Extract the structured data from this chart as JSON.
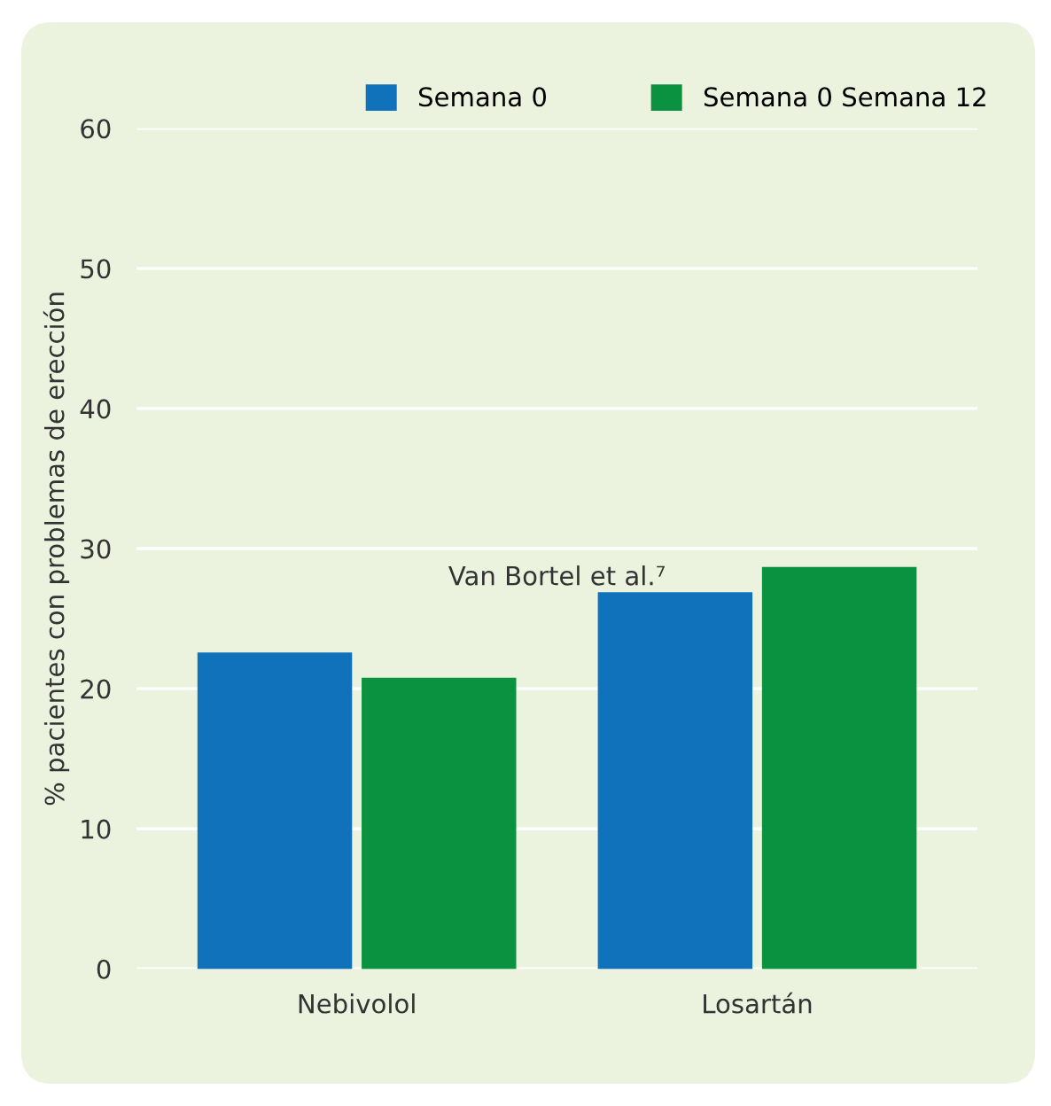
{
  "chart_data": {
    "type": "bar",
    "ylabel": "% pacientes con problemas de erección",
    "categories": [
      "Nebivolol",
      "Losartán"
    ],
    "series": [
      {
        "name": "Semana 0",
        "color": "#1072bb",
        "values": [
          22.5,
          26.8
        ]
      },
      {
        "name": "Semana 0 Semana 12",
        "color": "#0b9240",
        "values": [
          20.7,
          28.6
        ]
      }
    ],
    "ylim": [
      0,
      60
    ],
    "yticks": [
      0,
      10,
      20,
      30,
      40,
      50,
      60
    ],
    "grid": "y",
    "legend": "top right",
    "annotations": [
      {
        "text": "Van Bortel et al.⁷"
      }
    ]
  }
}
